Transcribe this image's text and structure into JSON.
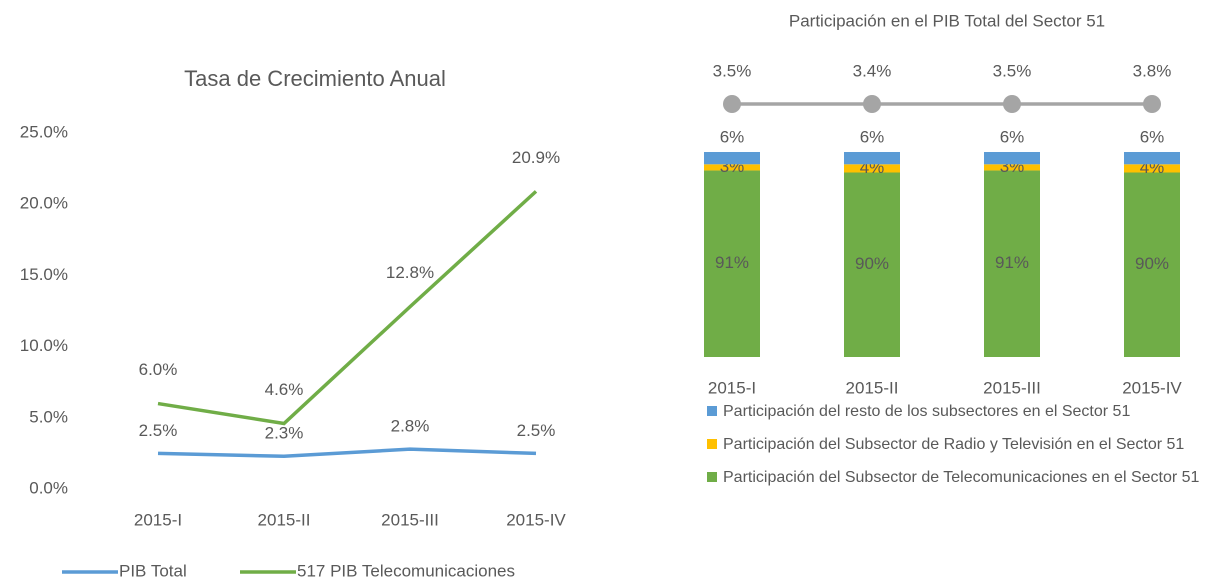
{
  "chart_data": [
    {
      "type": "line",
      "title": "Tasa de Crecimiento Anual",
      "categories": [
        "2015-I",
        "2015-II",
        "2015-III",
        "2015-IV"
      ],
      "series": [
        {
          "name": "PIB Total",
          "color": "#5b9bd5",
          "values": [
            2.5,
            2.3,
            2.8,
            2.5
          ],
          "value_labels": [
            "2.5%",
            "2.3%",
            "2.8%",
            "2.5%"
          ]
        },
        {
          "name": "517 PIB Telecomunicaciones",
          "color": "#70ad47",
          "values": [
            6.0,
            4.6,
            12.8,
            20.9
          ],
          "value_labels": [
            "6.0%",
            "4.6%",
            "12.8%",
            "20.9%"
          ]
        }
      ],
      "ylim": [
        0,
        25
      ],
      "yticks": [
        {
          "value": 0,
          "label": "0.0%"
        },
        {
          "value": 5,
          "label": "5.0%"
        },
        {
          "value": 10,
          "label": "10.0%"
        },
        {
          "value": 15,
          "label": "15.0%"
        },
        {
          "value": 20,
          "label": "20.0%"
        },
        {
          "value": 25,
          "label": "25.0%"
        }
      ],
      "legend": "bottom"
    },
    {
      "type": "stacked_bar",
      "title": "Participación en el PIB Total del Sector 51",
      "categories": [
        "2015-I",
        "2015-II",
        "2015-III",
        "2015-IV"
      ],
      "series": [
        {
          "name": "Participación del Subsector de Telecomunicaciones en el Sector 51",
          "color": "#70ad47",
          "values": [
            91,
            90,
            91,
            90
          ],
          "value_labels": [
            "91%",
            "90%",
            "91%",
            "90%"
          ]
        },
        {
          "name": "Participación del Subsector de Radio y Televisión en el Sector 51",
          "color": "#ffc000",
          "values": [
            3,
            4,
            3,
            4
          ],
          "value_labels": [
            "3%",
            "4%",
            "3%",
            "4%"
          ]
        },
        {
          "name": "Participación del resto de los subsectores en el Sector 51",
          "color": "#5b9bd5",
          "values": [
            6,
            6,
            6,
            6
          ],
          "value_labels": [
            "6%",
            "6%",
            "6%",
            "6%"
          ]
        }
      ],
      "top_line": {
        "color": "#a5a5a5",
        "values": [
          3.5,
          3.4,
          3.5,
          3.8
        ],
        "value_labels": [
          "3.5%",
          "3.4%",
          "3.5%",
          "3.8%"
        ]
      },
      "ylim": [
        0,
        100
      ],
      "legend": "bottom"
    }
  ]
}
